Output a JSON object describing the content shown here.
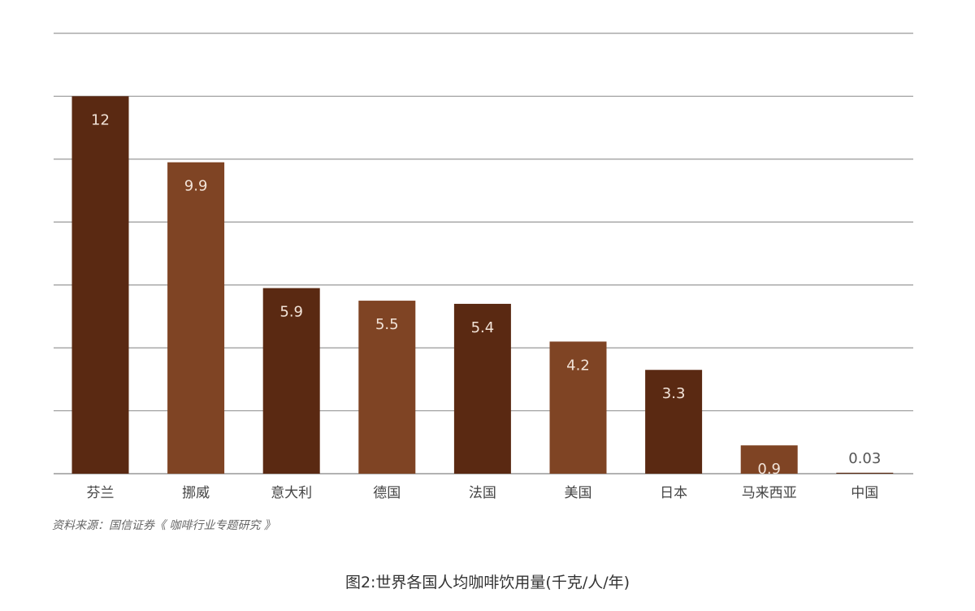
{
  "chart_data": {
    "type": "bar",
    "categories": [
      "芬兰",
      "挪威",
      "意大利",
      "德国",
      "法国",
      "美国",
      "日本",
      "马来西亚",
      "中国"
    ],
    "values": [
      12,
      9.9,
      5.9,
      5.5,
      5.4,
      4.2,
      3.3,
      0.9,
      0.03
    ],
    "value_labels": [
      "12",
      "9.9",
      "5.9",
      "5.5",
      "5.4",
      "4.2",
      "3.3",
      "0.9",
      "0.03"
    ],
    "ylim": [
      0,
      14
    ],
    "grid": true,
    "colors": {
      "dark": "#5a2912",
      "light": "#7f4424",
      "gridline": "#999999",
      "label_inside": "#f2e3d8",
      "label_outside": "#555555",
      "axis_text": "#444444"
    }
  },
  "source": "资料来源：国信证券《 咖啡行业专题研究 》",
  "caption": "图2:世界各国人均咖啡饮用量(千克/人/年)"
}
